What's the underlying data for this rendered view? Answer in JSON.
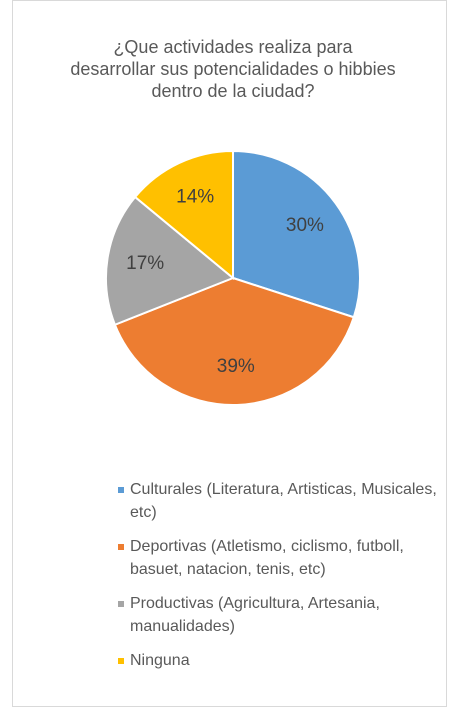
{
  "chart_data": {
    "type": "pie",
    "title": "¿Que actividades realiza para desarrollar sus potencialidades o hibbies dentro de la ciudad?",
    "categories": [
      "Culturales (Literatura, Artisticas, Musicales, etc)",
      "Deportivas (Atletismo, ciclismo, futboll, basuet, natacion, tenis, etc)",
      "Productivas (Agricultura, Artesania, manualidades)",
      "Ninguna"
    ],
    "values": [
      30,
      39,
      17,
      14
    ],
    "value_labels": [
      "30%",
      "39%",
      "17%",
      "14%"
    ],
    "colors": [
      "#5b9bd5",
      "#ed7d31",
      "#a5a5a5",
      "#ffc000"
    ],
    "legend": "bottom"
  }
}
